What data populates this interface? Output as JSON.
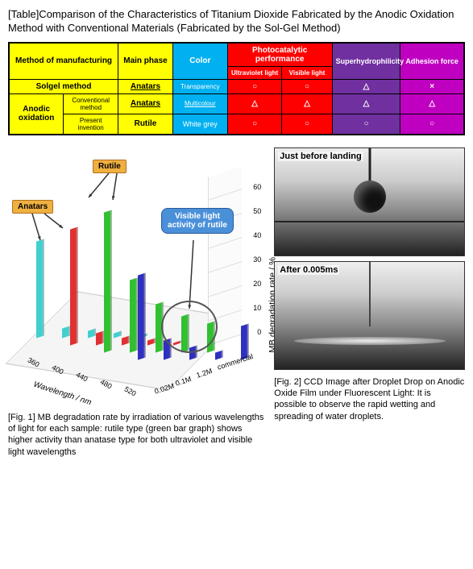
{
  "title": "[Table]Comparison of the Characteristics of Titanium Dioxide Fabricated by the Anodic Oxidation Method with Conventional Materials (Fabricated by the Sol-Gel Method)",
  "table": {
    "headers": {
      "method": "Method of manufacturing",
      "phase": "Main phase",
      "color": "Color",
      "photo": "Photocatalytic performance",
      "uv": "Ultraviolet light",
      "vis": "Visible light",
      "hydro": "Superhydrophilicity",
      "adh": "Adhesion force"
    },
    "rows": [
      {
        "m1": "Solgel method",
        "m2": "",
        "phase": "Anatars",
        "color": "Transparency",
        "uv": "○",
        "vis": "○",
        "hydro": "△",
        "adh": "×"
      },
      {
        "m1": "Anodic oxidation",
        "m2": "Conventional method",
        "phase": "Anatars",
        "color": "Multicolour",
        "uv": "△",
        "vis": "△",
        "hydro": "△",
        "adh": "△"
      },
      {
        "m1": "",
        "m2": "Present invention",
        "phase": "Rutile",
        "color": "White grey",
        "uv": "○",
        "vis": "○",
        "hydro": "○",
        "adh": "○"
      }
    ],
    "colors": {
      "yellow": "#ffff00",
      "cyan": "#00b0f0",
      "red": "#ff0000",
      "purple": "#7030a0",
      "magenta": "#c000c0"
    }
  },
  "chart": {
    "type": "bar3d",
    "callouts": {
      "anatars": "Anatars",
      "rutile": "Rutile",
      "vis": "Visible light activity of rutile"
    },
    "xlabel": "Wavelength / nm",
    "zlabel": "MB degradation rate / %",
    "x_ticks": [
      "360",
      "400",
      "440",
      "480",
      "520"
    ],
    "series_ticks": [
      "0.02M",
      "0.1M",
      "1.2M",
      "commercial"
    ],
    "z_ticks": [
      "0",
      "10",
      "20",
      "30",
      "40",
      "50",
      "60"
    ],
    "series_colors": {
      "s02": "#40d0d0",
      "s01": "#e03030",
      "s12": "#30c030",
      "comm": "#3030c0"
    },
    "bars": {
      "s02": [
        40,
        4,
        3,
        2,
        1
      ],
      "s01": [
        48,
        5,
        3,
        2,
        1
      ],
      "s12": [
        58,
        30,
        20,
        15,
        12
      ],
      "comm": [
        35,
        8,
        5,
        3,
        14
      ]
    },
    "circle_group": {
      "x_index_range": [
        3,
        4
      ],
      "series": "s12_comm"
    }
  },
  "ccd": {
    "label1": "Just before landing",
    "label2": "After 0.005ms"
  },
  "captions": {
    "fig1": "[Fig. 1] MB degradation rate by irradiation of various wavelengths of light for each sample: rutile type (green bar graph) shows higher activity than anatase type for both ultraviolet and visible light wavelengths",
    "fig2": "[Fig. 2] CCD Image after Droplet Drop on Anodic Oxide Film under Fluorescent Light: It is possible to observe the rapid wetting and spreading of water droplets."
  }
}
